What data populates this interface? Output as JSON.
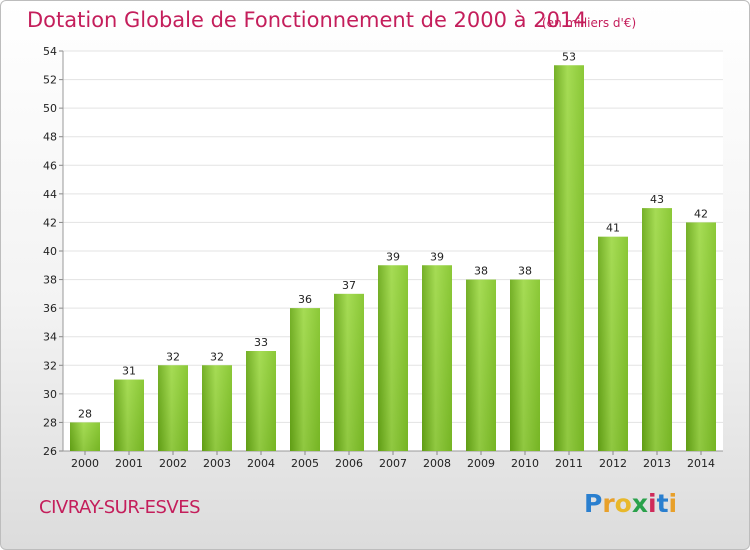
{
  "chart_data": {
    "type": "bar",
    "title": "Dotation Globale de Fonctionnement de 2000 à 2014",
    "subtitle": "(en milliers d'€)",
    "categories": [
      "2000",
      "2001",
      "2002",
      "2003",
      "2004",
      "2005",
      "2006",
      "2007",
      "2008",
      "2009",
      "2010",
      "2011",
      "2012",
      "2013",
      "2014"
    ],
    "values": [
      28,
      31,
      32,
      32,
      33,
      36,
      37,
      39,
      39,
      38,
      38,
      53,
      41,
      43,
      42
    ],
    "data_labels": [
      "28",
      "31",
      "32",
      "32",
      "33",
      "36",
      "37",
      "39",
      "39",
      "38",
      "38",
      "53",
      "41",
      "43",
      "42"
    ],
    "ylim": [
      26,
      54
    ],
    "yticks": [
      "26",
      "28",
      "30",
      "32",
      "34",
      "36",
      "38",
      "40",
      "42",
      "44",
      "46",
      "48",
      "50",
      "52",
      "54"
    ],
    "grid": true,
    "bar_color": "#7fbf2a",
    "bar_color_light": "#a6dc55",
    "bar_color_dark": "#5f9c14",
    "xlabel": "",
    "ylabel": ""
  },
  "footer": {
    "commune": "CIVRAY-SUR-ESVES",
    "logo_letters": [
      "P",
      "r",
      "o",
      "x",
      "i",
      "t",
      "i"
    ],
    "logo_colors": [
      "#2a7fcf",
      "#e8a02a",
      "#e8b82a",
      "#2aa14b",
      "#cf2a5a",
      "#2a7fcf",
      "#e8a02a"
    ]
  }
}
